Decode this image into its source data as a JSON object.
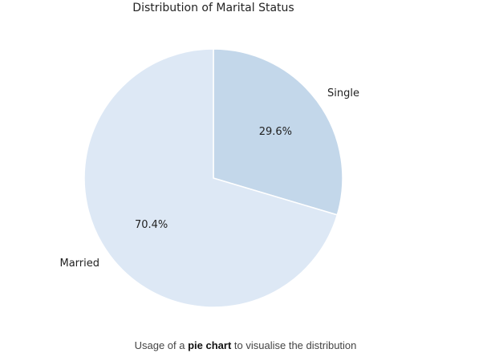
{
  "chart_data": {
    "type": "pie",
    "title": "Distribution of Marital Status",
    "labels": [
      "Single",
      "Married"
    ],
    "values": [
      29.6,
      70.4
    ],
    "value_labels": [
      "29.6%",
      "70.4%"
    ],
    "colors": [
      "#c3d7ea",
      "#dde8f5"
    ],
    "start_angle_deg": 90,
    "direction": "clockwise"
  },
  "caption": {
    "prefix": "Usage of a ",
    "bold": "pie chart",
    "suffix": " to visualise the distribution"
  }
}
